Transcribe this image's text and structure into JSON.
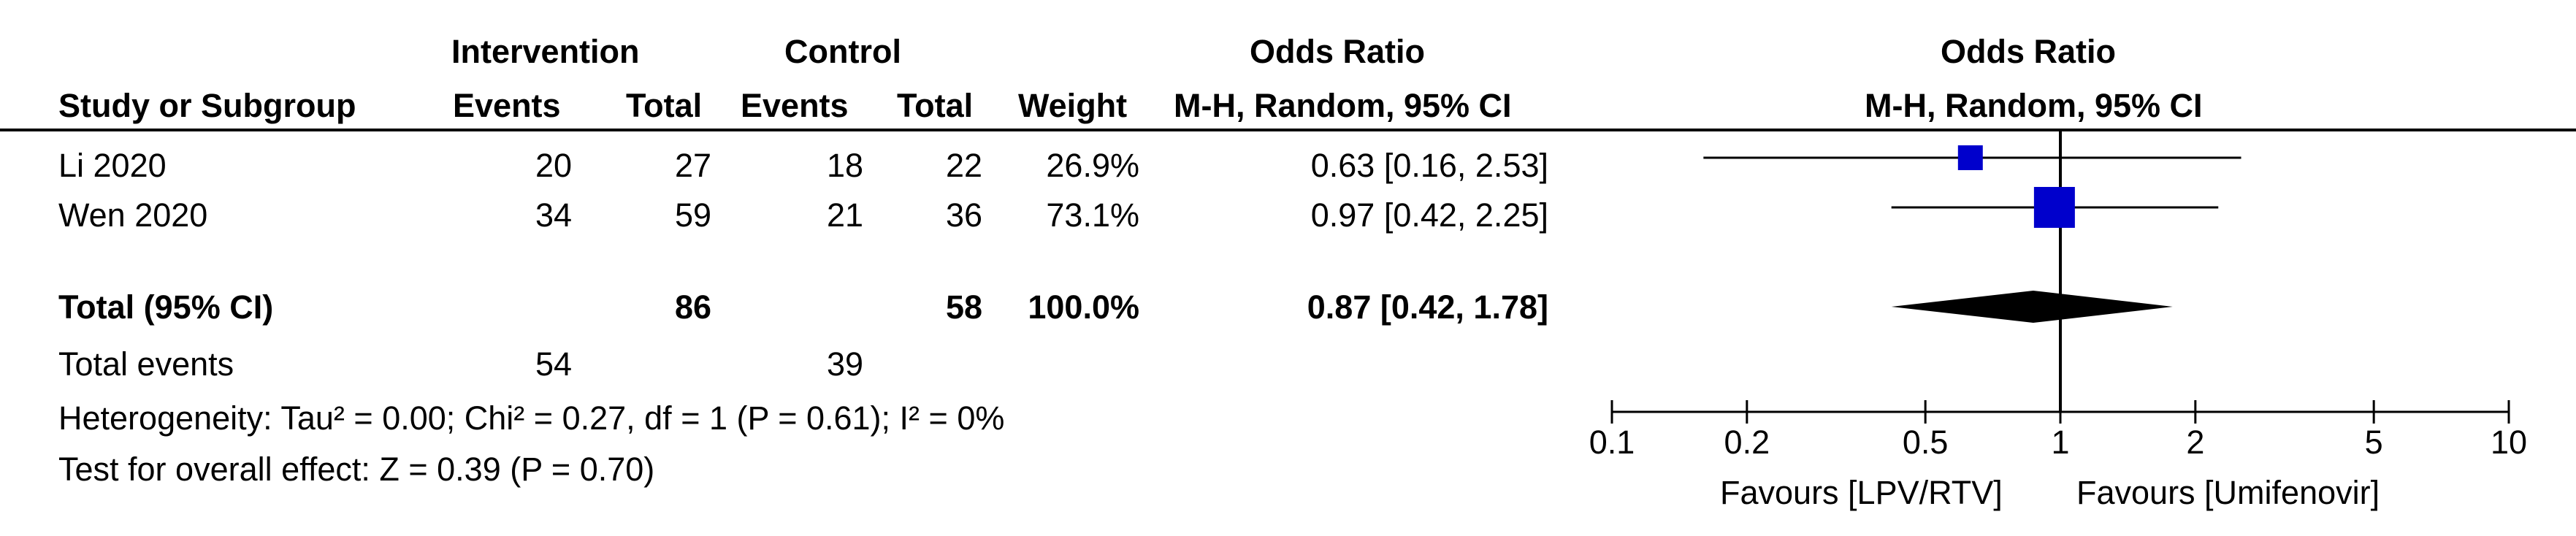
{
  "header": {
    "group1": "Intervention",
    "group2": "Control",
    "or_title": "Odds Ratio",
    "col_study": "Study or Subgroup",
    "col_events1": "Events",
    "col_total1": "Total",
    "col_events2": "Events",
    "col_total2": "Total",
    "col_weight": "Weight",
    "col_or": "M-H, Random, 95% CI",
    "plot_title": "Odds Ratio",
    "plot_subtitle": "M-H, Random, 95% CI"
  },
  "studies": [
    {
      "name": "Li 2020",
      "events1": "20",
      "total1": "27",
      "events2": "18",
      "total2": "22",
      "weight": "26.9%",
      "ci_text": "0.63 [0.16, 2.53]"
    },
    {
      "name": "Wen 2020",
      "events1": "34",
      "total1": "59",
      "events2": "21",
      "total2": "36",
      "weight": "73.1%",
      "ci_text": "0.97 [0.42, 2.25]"
    }
  ],
  "total": {
    "label": "Total (95% CI)",
    "total1": "86",
    "total2": "58",
    "weight": "100.0%",
    "ci_text": "0.87 [0.42, 1.78]"
  },
  "total_events": {
    "label": "Total events",
    "events1": "54",
    "events2": "39"
  },
  "heterogeneity": "Heterogeneity: Tau² = 0.00; Chi² = 0.27, df = 1 (P = 0.61); I² = 0%",
  "overall_effect": "Test for overall effect: Z = 0.39 (P = 0.70)",
  "axis": {
    "favours_left": "Favours [LPV/RTV]",
    "favours_right": "Favours [Umifenovir]"
  },
  "colors": {
    "marker": "#0000cc",
    "diamond": "#000000",
    "line": "#000000"
  },
  "chart_data": {
    "type": "forest",
    "scale": "log",
    "xlim": [
      0.1,
      10
    ],
    "ticks": [
      0.1,
      0.2,
      0.5,
      1,
      2,
      5,
      10
    ],
    "tick_labels": [
      "0.1",
      "0.2",
      "0.5",
      "1",
      "2",
      "5",
      "10"
    ],
    "studies": [
      {
        "name": "Li 2020",
        "or": 0.63,
        "lower": 0.16,
        "upper": 2.53,
        "weight": 26.9
      },
      {
        "name": "Wen 2020",
        "or": 0.97,
        "lower": 0.42,
        "upper": 2.25,
        "weight": 73.1
      }
    ],
    "pooled": {
      "or": 0.87,
      "lower": 0.42,
      "upper": 1.78
    }
  }
}
